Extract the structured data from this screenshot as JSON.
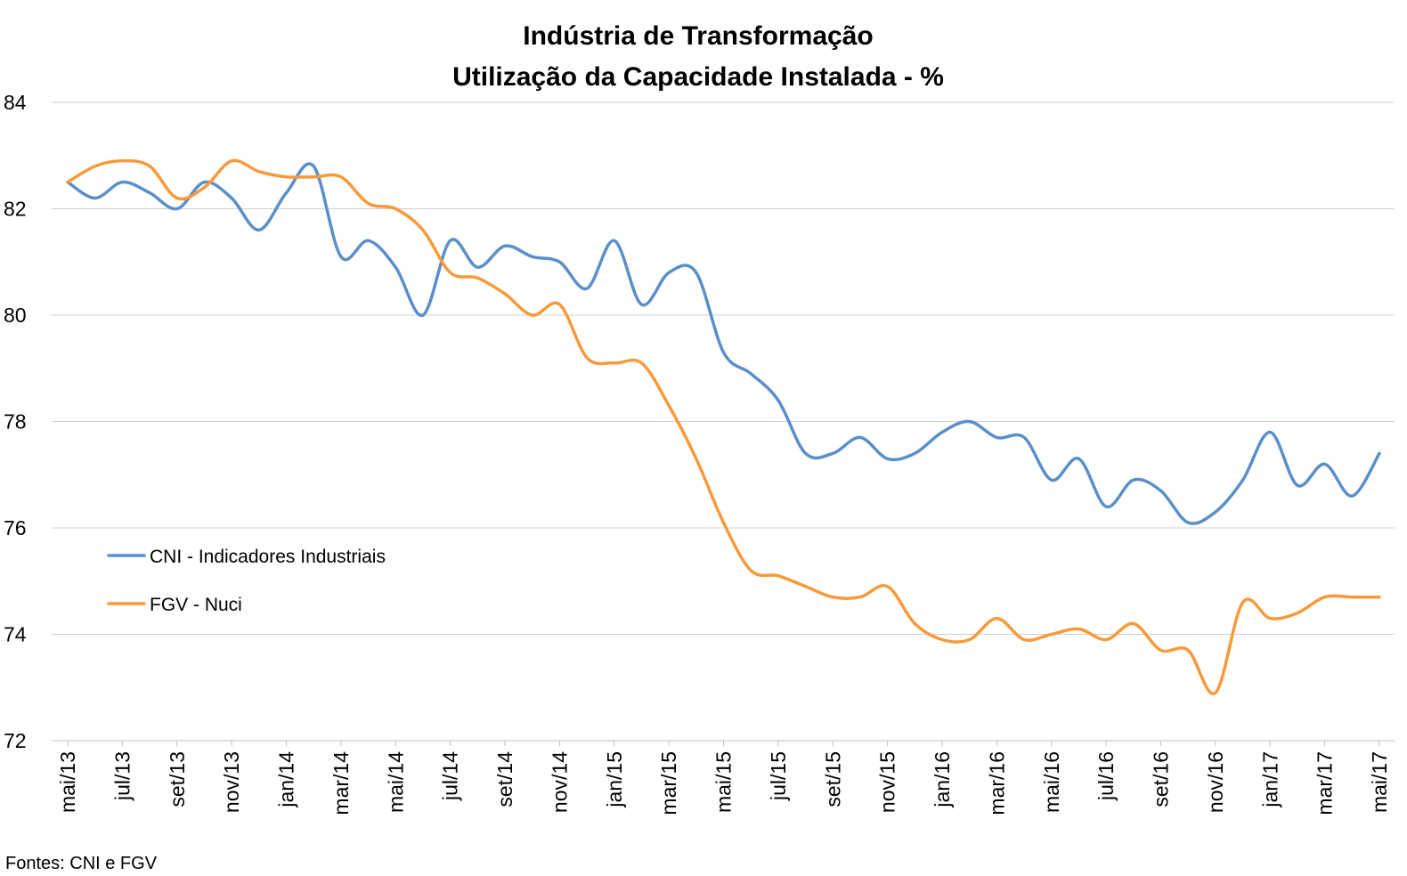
{
  "chart_data": {
    "type": "line",
    "title": "Indústria de Transformação",
    "subtitle": "Utilização da Capacidade Instalada - %",
    "xlabel": "",
    "ylabel": "",
    "ylim": [
      72,
      84
    ],
    "yticks": [
      "72",
      "74",
      "76",
      "78",
      "80",
      "82",
      "84"
    ],
    "grid": "horizontal",
    "legend_position": "left",
    "source": "Fontes: CNI e FGV",
    "categories": [
      "mai/13",
      "jun/13",
      "jul/13",
      "ago/13",
      "set/13",
      "out/13",
      "nov/13",
      "dez/13",
      "jan/14",
      "fev/14",
      "mar/14",
      "abr/14",
      "mai/14",
      "jun/14",
      "jul/14",
      "ago/14",
      "set/14",
      "out/14",
      "nov/14",
      "dez/14",
      "jan/15",
      "fev/15",
      "mar/15",
      "abr/15",
      "mai/15",
      "jun/15",
      "jul/15",
      "ago/15",
      "set/15",
      "out/15",
      "nov/15",
      "dez/15",
      "jan/16",
      "fev/16",
      "mar/16",
      "abr/16",
      "mai/16",
      "jun/16",
      "jul/16",
      "ago/16",
      "set/16",
      "out/16",
      "nov/16",
      "dez/16",
      "jan/17",
      "fev/17",
      "mar/17",
      "abr/17",
      "mai/17"
    ],
    "x_tick_labels": [
      "mai/13",
      "jul/13",
      "set/13",
      "nov/13",
      "jan/14",
      "mar/14",
      "mai/14",
      "jul/14",
      "set/14",
      "nov/14",
      "jan/15",
      "mar/15",
      "mai/15",
      "jul/15",
      "set/15",
      "nov/15",
      "jan/16",
      "mar/16",
      "mai/16",
      "jul/16",
      "set/16",
      "nov/16",
      "jan/17",
      "mar/17",
      "mai/17"
    ],
    "series": [
      {
        "name": "CNI - Indicadores Industriais",
        "color": "#5b8fc9",
        "values": [
          82.5,
          82.2,
          82.5,
          82.3,
          82.0,
          82.5,
          82.2,
          81.6,
          82.3,
          82.8,
          81.1,
          81.4,
          80.9,
          80.0,
          81.4,
          80.9,
          81.3,
          81.1,
          81.0,
          80.5,
          81.4,
          80.2,
          80.8,
          80.8,
          79.3,
          78.9,
          78.4,
          77.4,
          77.4,
          77.7,
          77.3,
          77.4,
          77.8,
          78.0,
          77.7,
          77.7,
          76.9,
          77.3,
          76.4,
          76.9,
          76.7,
          76.1,
          76.3,
          76.9,
          77.8,
          76.8,
          77.2,
          76.6,
          77.4
        ]
      },
      {
        "name": "FGV - Nuci",
        "color": "#f79a3b",
        "values": [
          82.5,
          82.8,
          82.9,
          82.8,
          82.2,
          82.4,
          82.9,
          82.7,
          82.6,
          82.6,
          82.6,
          82.1,
          82.0,
          81.6,
          80.8,
          80.7,
          80.4,
          80.0,
          80.2,
          79.2,
          79.1,
          79.1,
          78.3,
          77.3,
          76.1,
          75.2,
          75.1,
          74.9,
          74.7,
          74.7,
          74.9,
          74.2,
          73.9,
          73.9,
          74.3,
          73.9,
          74.0,
          74.1,
          73.9,
          74.2,
          73.7,
          73.7,
          72.9,
          74.6,
          74.3,
          74.4,
          74.7,
          74.7,
          74.7
        ]
      }
    ]
  }
}
